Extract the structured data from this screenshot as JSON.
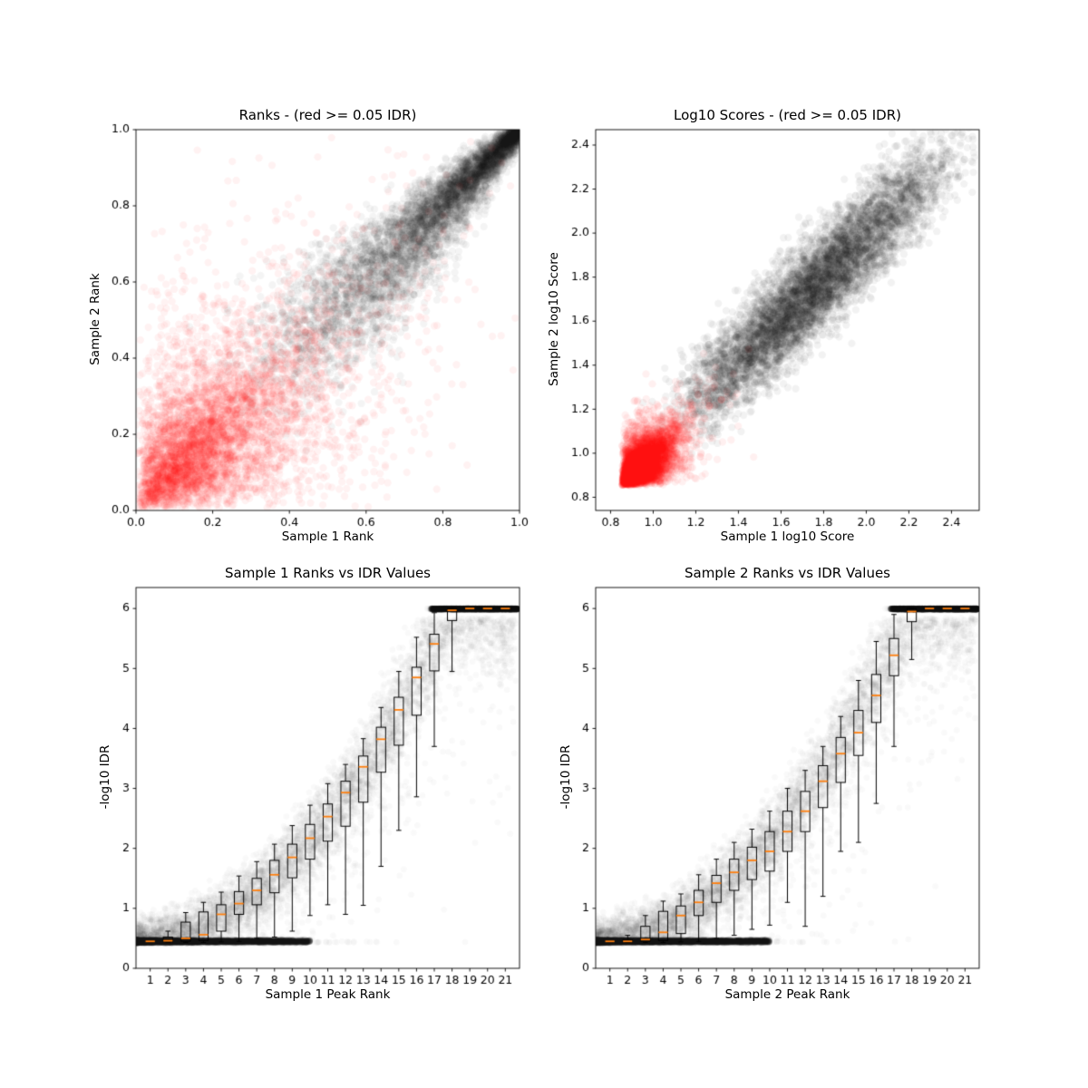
{
  "figure": {
    "background": "#ffffff",
    "text_color": "#000000",
    "frame_color": "#000000"
  },
  "colors": {
    "reproducible_points": "#000000",
    "irreproducible_points": "#ff0000",
    "box_line": "#000000",
    "median_line": "#ff7f0e"
  },
  "chart_data": [
    {
      "id": "ranks-scatter",
      "type": "scatter",
      "title": "Ranks - (red >= 0.05 IDR)",
      "xlabel": "Sample 1 Rank",
      "ylabel": "Sample 2 Rank",
      "xlim": [
        0.0,
        1.0
      ],
      "ylim": [
        0.0,
        1.0
      ],
      "xticks": [
        0.0,
        0.2,
        0.4,
        0.6,
        0.8,
        1.0
      ],
      "xtick_labels": [
        "0.0",
        "0.2",
        "0.4",
        "0.6",
        "0.8",
        "1.0"
      ],
      "yticks": [
        0.0,
        0.2,
        0.4,
        0.6,
        0.8,
        1.0
      ],
      "ytick_labels": [
        "0.0",
        "0.2",
        "0.4",
        "0.6",
        "0.8",
        "1.0"
      ],
      "grid": false,
      "legend": "none",
      "series": [
        {
          "name": "peaks with IDR < 0.05 (black, correlated ranks 0.33-1.0 along diagonal, densest at (1,1))",
          "kind": "rank_black",
          "color": "#000000",
          "alpha": 0.045,
          "n": 6000,
          "r": 4.2,
          "tmin": 0.33,
          "pow": 0.55,
          "sd": 0.13,
          "seed": 101
        },
        {
          "name": "peaks with IDR >= 0.05 (red, concentrated near origin, sparse tail to ~0.9)",
          "kind": "rank_red",
          "color": "#ff0000",
          "alpha": 0.05,
          "n": 5200,
          "r": 4.2,
          "shared": 0.12,
          "ind": 0.11,
          "seed": 202
        }
      ]
    },
    {
      "id": "scores-scatter",
      "type": "scatter",
      "title": "Log10 Scores - (red >= 0.05 IDR)",
      "xlabel": "Sample 1 log10 Score",
      "ylabel": "Sample 2 log10 Score",
      "xlim": [
        0.73,
        2.53
      ],
      "ylim": [
        0.74,
        2.47
      ],
      "xticks": [
        0.8,
        1.0,
        1.2,
        1.4,
        1.6,
        1.8,
        2.0,
        2.2,
        2.4
      ],
      "xtick_labels": [
        "0.8",
        "1.0",
        "1.2",
        "1.4",
        "1.6",
        "1.8",
        "2.0",
        "2.2",
        "2.4"
      ],
      "yticks": [
        0.8,
        1.0,
        1.2,
        1.4,
        1.6,
        1.8,
        2.0,
        2.2,
        2.4
      ],
      "ytick_labels": [
        "0.8",
        "1.0",
        "1.2",
        "1.4",
        "1.6",
        "1.8",
        "2.0",
        "2.2",
        "2.4"
      ],
      "grid": false,
      "legend": "none",
      "series": [
        {
          "name": "peaks with IDR < 0.05 (black, diagonal cloud from ~1.15 to ~2.45)",
          "kind": "score_black",
          "color": "#000000",
          "alpha": 0.05,
          "n": 6500,
          "r": 4.2,
          "m0": 1.14,
          "mrange": 1.32,
          "sd": 0.082,
          "seed": 303
        },
        {
          "name": "peaks with IDR >= 0.05 (red, dense cluster near (0.9,0.9), tail to ~1.7)",
          "kind": "score_red",
          "color": "#ff0000",
          "alpha": 0.06,
          "n": 6000,
          "r": 4.2,
          "base": 0.853,
          "shared": 0.055,
          "ind": 0.048,
          "seed": 404
        }
      ]
    },
    {
      "id": "sample1-rank-vs-idr",
      "type": "box+scatter",
      "title": "Sample 1 Ranks vs IDR Values",
      "xlabel": "Sample 1 Peak Rank",
      "ylabel": "-log10 IDR",
      "xlim": [
        0.2,
        21.8
      ],
      "ylim": [
        0,
        6.35
      ],
      "xticks": [
        1,
        2,
        3,
        4,
        5,
        6,
        7,
        8,
        9,
        10,
        11,
        12,
        13,
        14,
        15,
        16,
        17,
        18,
        19,
        20,
        21
      ],
      "xtick_labels": [
        "1",
        "2",
        "3",
        "4",
        "5",
        "6",
        "7",
        "8",
        "9",
        "10",
        "11",
        "12",
        "13",
        "14",
        "15",
        "16",
        "17",
        "18",
        "19",
        "20",
        "21"
      ],
      "yticks": [
        0,
        1,
        2,
        3,
        4,
        5,
        6
      ],
      "ytick_labels": [
        "0",
        "1",
        "2",
        "3",
        "4",
        "5",
        "6"
      ],
      "grid": false,
      "legend": "none",
      "median_curve": "-log10(IDR) = min(6, 0.45 + 5.55*(rank/18)^2)",
      "scatter_series": [
        {
          "name": "per-peak -log10 IDR vs rank (grey cloud)",
          "kind": "idr_curve",
          "color": "#000000",
          "alpha": 0.025,
          "n": 7000,
          "r": 3.5,
          "seed": 505
        },
        {
          "name": "floor band at -log10 IDR ~ 0.45",
          "kind": "idr_band",
          "color": "#000000",
          "alpha": 0.05,
          "n": 5000,
          "r": 3.5,
          "seed": 606
        },
        {
          "name": "cap band at -log10 IDR = 6",
          "kind": "idr_top",
          "color": "#000000",
          "alpha": 0.08,
          "n": 2200,
          "r": 3.5,
          "seed": 707
        }
      ],
      "boxes": [
        {
          "rank": 1,
          "whislo": 0.43,
          "q1": 0.44,
          "med": 0.45,
          "q3": 0.46,
          "whishi": 0.48
        },
        {
          "rank": 2,
          "whislo": 0.43,
          "q1": 0.44,
          "med": 0.46,
          "q3": 0.52,
          "whishi": 0.62
        },
        {
          "rank": 3,
          "whislo": 0.43,
          "q1": 0.45,
          "med": 0.5,
          "q3": 0.77,
          "whishi": 0.93
        },
        {
          "rank": 4,
          "whislo": 0.43,
          "q1": 0.46,
          "med": 0.56,
          "q3": 0.94,
          "whishi": 1.1
        },
        {
          "rank": 5,
          "whislo": 0.44,
          "q1": 0.62,
          "med": 0.9,
          "q3": 1.06,
          "whishi": 1.27
        },
        {
          "rank": 6,
          "whislo": 0.45,
          "q1": 0.9,
          "med": 1.08,
          "q3": 1.28,
          "whishi": 1.54
        },
        {
          "rank": 7,
          "whislo": 0.5,
          "q1": 1.06,
          "med": 1.3,
          "q3": 1.5,
          "whishi": 1.78
        },
        {
          "rank": 8,
          "whislo": 0.52,
          "q1": 1.26,
          "med": 1.56,
          "q3": 1.8,
          "whishi": 2.07
        },
        {
          "rank": 9,
          "whislo": 0.62,
          "q1": 1.51,
          "med": 1.85,
          "q3": 2.07,
          "whishi": 2.38
        },
        {
          "rank": 10,
          "whislo": 0.88,
          "q1": 1.82,
          "med": 2.17,
          "q3": 2.4,
          "whishi": 2.72
        },
        {
          "rank": 11,
          "whislo": 1.06,
          "q1": 2.12,
          "med": 2.53,
          "q3": 2.74,
          "whishi": 3.08
        },
        {
          "rank": 12,
          "whislo": 0.9,
          "q1": 2.37,
          "med": 2.93,
          "q3": 3.12,
          "whishi": 3.4
        },
        {
          "rank": 13,
          "whislo": 1.05,
          "q1": 2.77,
          "med": 3.36,
          "q3": 3.54,
          "whishi": 3.83
        },
        {
          "rank": 14,
          "whislo": 1.7,
          "q1": 3.27,
          "med": 3.82,
          "q3": 4.02,
          "whishi": 4.35
        },
        {
          "rank": 15,
          "whislo": 2.3,
          "q1": 3.72,
          "med": 4.31,
          "q3": 4.52,
          "whishi": 4.95
        },
        {
          "rank": 16,
          "whislo": 2.86,
          "q1": 4.22,
          "med": 4.85,
          "q3": 5.02,
          "whishi": 5.52
        },
        {
          "rank": 17,
          "whislo": 3.7,
          "q1": 4.96,
          "med": 5.41,
          "q3": 5.57,
          "whishi": 5.93
        },
        {
          "rank": 18,
          "whislo": 4.95,
          "q1": 5.8,
          "med": 5.97,
          "q3": 6.0,
          "whishi": 6.0
        },
        {
          "rank": 19,
          "whislo": 6.0,
          "q1": 6.0,
          "med": 6.0,
          "q3": 6.0,
          "whishi": 6.0
        },
        {
          "rank": 20,
          "whislo": 6.0,
          "q1": 6.0,
          "med": 6.0,
          "q3": 6.0,
          "whishi": 6.0
        },
        {
          "rank": 21,
          "whislo": 6.0,
          "q1": 6.0,
          "med": 6.0,
          "q3": 6.0,
          "whishi": 6.0
        }
      ]
    },
    {
      "id": "sample2-rank-vs-idr",
      "type": "box+scatter",
      "title": "Sample 2 Ranks vs IDR Values",
      "xlabel": "Sample 2 Peak Rank",
      "ylabel": "-log10 IDR",
      "xlim": [
        0.2,
        21.8
      ],
      "ylim": [
        0,
        6.35
      ],
      "xticks": [
        1,
        2,
        3,
        4,
        5,
        6,
        7,
        8,
        9,
        10,
        11,
        12,
        13,
        14,
        15,
        16,
        17,
        18,
        19,
        20,
        21
      ],
      "xtick_labels": [
        "1",
        "2",
        "3",
        "4",
        "5",
        "6",
        "7",
        "8",
        "9",
        "10",
        "11",
        "12",
        "13",
        "14",
        "15",
        "16",
        "17",
        "18",
        "19",
        "20",
        "21"
      ],
      "yticks": [
        0,
        1,
        2,
        3,
        4,
        5,
        6
      ],
      "ytick_labels": [
        "0",
        "1",
        "2",
        "3",
        "4",
        "5",
        "6"
      ],
      "grid": false,
      "legend": "none",
      "median_curve": "-log10(IDR) = min(6, 0.45 + 5.55*(rank/18)^2)",
      "scatter_series": [
        {
          "name": "per-peak -log10 IDR vs rank (grey cloud)",
          "kind": "idr_curve",
          "color": "#000000",
          "alpha": 0.025,
          "n": 7000,
          "r": 3.5,
          "seed": 808
        },
        {
          "name": "floor band at -log10 IDR ~ 0.45",
          "kind": "idr_band",
          "color": "#000000",
          "alpha": 0.05,
          "n": 5000,
          "r": 3.5,
          "seed": 909
        },
        {
          "name": "cap band at -log10 IDR = 6",
          "kind": "idr_top",
          "color": "#000000",
          "alpha": 0.08,
          "n": 2200,
          "r": 3.5,
          "seed": 1010
        }
      ],
      "boxes": [
        {
          "rank": 1,
          "whislo": 0.43,
          "q1": 0.44,
          "med": 0.45,
          "q3": 0.46,
          "whishi": 0.48
        },
        {
          "rank": 2,
          "whislo": 0.43,
          "q1": 0.44,
          "med": 0.45,
          "q3": 0.48,
          "whishi": 0.55
        },
        {
          "rank": 3,
          "whislo": 0.43,
          "q1": 0.45,
          "med": 0.48,
          "q3": 0.7,
          "whishi": 0.88
        },
        {
          "rank": 4,
          "whislo": 0.43,
          "q1": 0.46,
          "med": 0.6,
          "q3": 0.95,
          "whishi": 1.12
        },
        {
          "rank": 5,
          "whislo": 0.44,
          "q1": 0.58,
          "med": 0.88,
          "q3": 1.04,
          "whishi": 1.24
        },
        {
          "rank": 6,
          "whislo": 0.45,
          "q1": 0.88,
          "med": 1.1,
          "q3": 1.3,
          "whishi": 1.56
        },
        {
          "rank": 7,
          "whislo": 0.5,
          "q1": 1.1,
          "med": 1.42,
          "q3": 1.55,
          "whishi": 1.82
        },
        {
          "rank": 8,
          "whislo": 0.55,
          "q1": 1.3,
          "med": 1.6,
          "q3": 1.82,
          "whishi": 2.1
        },
        {
          "rank": 9,
          "whislo": 0.65,
          "q1": 1.48,
          "med": 1.8,
          "q3": 2.02,
          "whishi": 2.32
        },
        {
          "rank": 10,
          "whislo": 0.72,
          "q1": 1.62,
          "med": 1.95,
          "q3": 2.28,
          "whishi": 2.62
        },
        {
          "rank": 11,
          "whislo": 1.1,
          "q1": 1.95,
          "med": 2.28,
          "q3": 2.62,
          "whishi": 3.0
        },
        {
          "rank": 12,
          "whislo": 0.7,
          "q1": 2.28,
          "med": 2.62,
          "q3": 2.95,
          "whishi": 3.3
        },
        {
          "rank": 13,
          "whislo": 1.2,
          "q1": 2.68,
          "med": 3.12,
          "q3": 3.38,
          "whishi": 3.7
        },
        {
          "rank": 14,
          "whislo": 1.95,
          "q1": 3.1,
          "med": 3.58,
          "q3": 3.85,
          "whishi": 4.2
        },
        {
          "rank": 15,
          "whislo": 2.1,
          "q1": 3.55,
          "med": 3.93,
          "q3": 4.3,
          "whishi": 4.8
        },
        {
          "rank": 16,
          "whislo": 2.75,
          "q1": 4.1,
          "med": 4.55,
          "q3": 4.9,
          "whishi": 5.45
        },
        {
          "rank": 17,
          "whislo": 3.7,
          "q1": 4.88,
          "med": 5.22,
          "q3": 5.5,
          "whishi": 5.9
        },
        {
          "rank": 18,
          "whislo": 5.15,
          "q1": 5.78,
          "med": 5.95,
          "q3": 6.0,
          "whishi": 6.0
        },
        {
          "rank": 19,
          "whislo": 6.0,
          "q1": 6.0,
          "med": 6.0,
          "q3": 6.0,
          "whishi": 6.0
        },
        {
          "rank": 20,
          "whislo": 6.0,
          "q1": 6.0,
          "med": 6.0,
          "q3": 6.0,
          "whishi": 6.0
        },
        {
          "rank": 21,
          "whislo": 6.0,
          "q1": 6.0,
          "med": 6.0,
          "q3": 6.0,
          "whishi": 6.0
        }
      ]
    }
  ]
}
